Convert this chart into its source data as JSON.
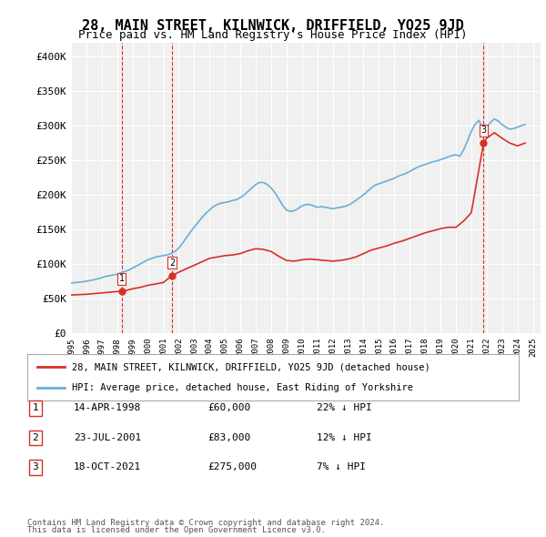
{
  "title": "28, MAIN STREET, KILNWICK, DRIFFIELD, YO25 9JD",
  "subtitle": "Price paid vs. HM Land Registry's House Price Index (HPI)",
  "title_fontsize": 11,
  "subtitle_fontsize": 9,
  "ylabel_ticks": [
    "£0",
    "£50K",
    "£100K",
    "£150K",
    "£200K",
    "£250K",
    "£300K",
    "£350K",
    "£400K"
  ],
  "ytick_values": [
    0,
    50000,
    100000,
    150000,
    200000,
    250000,
    300000,
    350000,
    400000
  ],
  "ylim": [
    0,
    420000
  ],
  "xlim_start": 1995.0,
  "xlim_end": 2025.5,
  "hpi_color": "#6baed6",
  "price_color": "#d73027",
  "sale_marker_color": "#d73027",
  "transaction_dline_color": "#d73027",
  "background_color": "#ffffff",
  "plot_bg_color": "#f0f0f0",
  "grid_color": "#ffffff",
  "legend_label_price": "28, MAIN STREET, KILNWICK, DRIFFIELD, YO25 9JD (detached house)",
  "legend_label_hpi": "HPI: Average price, detached house, East Riding of Yorkshire",
  "transactions": [
    {
      "num": 1,
      "date_label": "14-APR-1998",
      "price": 60000,
      "price_label": "£60,000",
      "pct_label": "22% ↓ HPI",
      "year": 1998.29
    },
    {
      "num": 2,
      "date_label": "23-JUL-2001",
      "price": 83000,
      "price_label": "£83,000",
      "pct_label": "12% ↓ HPI",
      "year": 2001.56
    },
    {
      "num": 3,
      "date_label": "18-OCT-2021",
      "price": 275000,
      "price_label": "£275,000",
      "pct_label": "7% ↓ HPI",
      "year": 2021.8
    }
  ],
  "footer_line1": "Contains HM Land Registry data © Crown copyright and database right 2024.",
  "footer_line2": "This data is licensed under the Open Government Licence v3.0.",
  "hpi_data_x": [
    1995.0,
    1995.25,
    1995.5,
    1995.75,
    1996.0,
    1996.25,
    1996.5,
    1996.75,
    1997.0,
    1997.25,
    1997.5,
    1997.75,
    1998.0,
    1998.25,
    1998.5,
    1998.75,
    1999.0,
    1999.25,
    1999.5,
    1999.75,
    2000.0,
    2000.25,
    2000.5,
    2000.75,
    2001.0,
    2001.25,
    2001.5,
    2001.75,
    2002.0,
    2002.25,
    2002.5,
    2002.75,
    2003.0,
    2003.25,
    2003.5,
    2003.75,
    2004.0,
    2004.25,
    2004.5,
    2004.75,
    2005.0,
    2005.25,
    2005.5,
    2005.75,
    2006.0,
    2006.25,
    2006.5,
    2006.75,
    2007.0,
    2007.25,
    2007.5,
    2007.75,
    2008.0,
    2008.25,
    2008.5,
    2008.75,
    2009.0,
    2009.25,
    2009.5,
    2009.75,
    2010.0,
    2010.25,
    2010.5,
    2010.75,
    2011.0,
    2011.25,
    2011.5,
    2011.75,
    2012.0,
    2012.25,
    2012.5,
    2012.75,
    2013.0,
    2013.25,
    2013.5,
    2013.75,
    2014.0,
    2014.25,
    2014.5,
    2014.75,
    2015.0,
    2015.25,
    2015.5,
    2015.75,
    2016.0,
    2016.25,
    2016.5,
    2016.75,
    2017.0,
    2017.25,
    2017.5,
    2017.75,
    2018.0,
    2018.25,
    2018.5,
    2018.75,
    2019.0,
    2019.25,
    2019.5,
    2019.75,
    2020.0,
    2020.25,
    2020.5,
    2020.75,
    2021.0,
    2021.25,
    2021.5,
    2021.75,
    2022.0,
    2022.25,
    2022.5,
    2022.75,
    2023.0,
    2023.25,
    2023.5,
    2023.75,
    2024.0,
    2024.25,
    2024.5
  ],
  "hpi_data_y": [
    72000,
    73000,
    73500,
    74000,
    75000,
    76000,
    77000,
    78500,
    80000,
    82000,
    83000,
    84000,
    85000,
    87000,
    89000,
    91000,
    94000,
    97000,
    100000,
    103000,
    106000,
    108000,
    110000,
    111000,
    112000,
    113000,
    115000,
    118000,
    123000,
    130000,
    138000,
    146000,
    153000,
    160000,
    167000,
    173000,
    178000,
    183000,
    186000,
    188000,
    189000,
    190000,
    192000,
    193000,
    196000,
    200000,
    205000,
    210000,
    215000,
    218000,
    218000,
    215000,
    210000,
    203000,
    194000,
    185000,
    178000,
    176000,
    177000,
    180000,
    184000,
    186000,
    186000,
    184000,
    182000,
    183000,
    182000,
    181000,
    180000,
    181000,
    182000,
    183000,
    185000,
    188000,
    192000,
    196000,
    200000,
    205000,
    210000,
    214000,
    216000,
    218000,
    220000,
    222000,
    224000,
    227000,
    229000,
    231000,
    234000,
    237000,
    240000,
    242000,
    244000,
    246000,
    248000,
    249000,
    251000,
    253000,
    255000,
    257000,
    258000,
    256000,
    265000,
    278000,
    292000,
    302000,
    308000,
    295000,
    298000,
    305000,
    310000,
    307000,
    302000,
    298000,
    295000,
    296000,
    298000,
    300000,
    302000
  ],
  "price_line_x": [
    1995.0,
    1995.5,
    1996.0,
    1996.5,
    1997.0,
    1997.5,
    1998.0,
    1998.29,
    1998.5,
    1999.0,
    1999.5,
    2000.0,
    2000.5,
    2001.0,
    2001.56,
    2002.0,
    2002.5,
    2003.0,
    2003.5,
    2004.0,
    2004.5,
    2005.0,
    2005.5,
    2006.0,
    2006.5,
    2007.0,
    2007.5,
    2008.0,
    2008.5,
    2009.0,
    2009.5,
    2010.0,
    2010.5,
    2011.0,
    2011.5,
    2012.0,
    2012.5,
    2013.0,
    2013.5,
    2014.0,
    2014.5,
    2015.0,
    2015.5,
    2016.0,
    2016.5,
    2017.0,
    2017.5,
    2018.0,
    2018.5,
    2019.0,
    2019.5,
    2020.0,
    2020.5,
    2021.0,
    2021.8,
    2022.0,
    2022.5,
    2023.0,
    2023.5,
    2024.0,
    2024.5
  ],
  "price_line_y": [
    55000,
    55500,
    56000,
    57000,
    58000,
    59000,
    60000,
    60000,
    61000,
    64000,
    66000,
    69000,
    71000,
    73000,
    83000,
    88000,
    93000,
    98000,
    103000,
    108000,
    110000,
    112000,
    113000,
    115000,
    119000,
    122000,
    121000,
    118000,
    111000,
    105000,
    104000,
    106000,
    107000,
    106000,
    105000,
    104000,
    105000,
    107000,
    110000,
    115000,
    120000,
    123000,
    126000,
    130000,
    133000,
    137000,
    141000,
    145000,
    148000,
    151000,
    153000,
    153000,
    162000,
    174000,
    275000,
    282000,
    290000,
    282000,
    275000,
    271000,
    275000
  ]
}
